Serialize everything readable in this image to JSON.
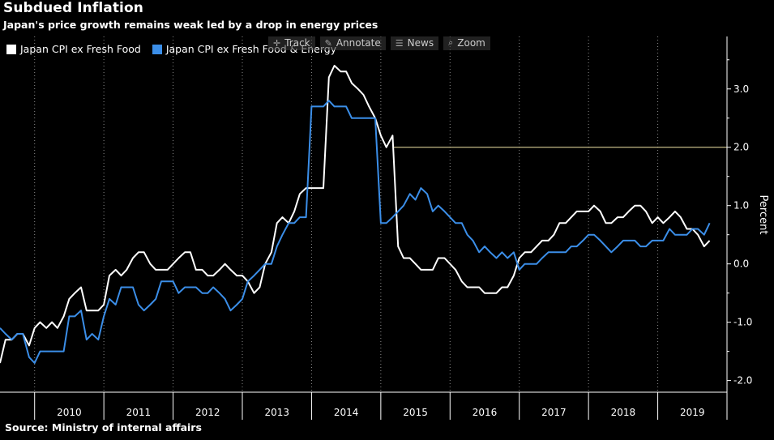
{
  "header": {
    "title": "Subdued Inflation",
    "subtitle": "Japan's price growth remains weak led by a drop in energy prices"
  },
  "source": "Source: Ministry of internal affairs",
  "toolbar": [
    {
      "label": "Track",
      "icon": "crosshair-icon",
      "glyph": "✛"
    },
    {
      "label": "Annotate",
      "icon": "pencil-icon",
      "glyph": "✎"
    },
    {
      "label": "News",
      "icon": "news-icon",
      "glyph": "☰"
    },
    {
      "label": "Zoom",
      "icon": "magnifier-icon",
      "glyph": "⌕"
    }
  ],
  "colors": {
    "background": "#000000",
    "series1": "#ffffff",
    "series2": "#3b8ee8",
    "reference": "#f3e6a8",
    "axis": "#ffffff"
  },
  "chart_data": {
    "type": "line",
    "title": "Subdued Inflation",
    "subtitle": "Japan's price growth remains weak led by a drop in energy prices",
    "xlabel": "",
    "ylabel": "Percent",
    "xlim": [
      2009.5,
      2020.0
    ],
    "ylim": [
      -2.2,
      3.9
    ],
    "x_tick_labels": [
      "2010",
      "2011",
      "2012",
      "2013",
      "2014",
      "2015",
      "2016",
      "2017",
      "2018",
      "2019"
    ],
    "y_ticks": [
      -2.0,
      -1.0,
      0.0,
      1.0,
      2.0,
      3.0
    ],
    "y_tick_labels": [
      "-2.0",
      "-1.0",
      "0.0",
      "1.0",
      "2.0",
      "3.0"
    ],
    "reference_line": {
      "y": 2.0,
      "label": "2.0"
    },
    "legend": "top-left",
    "grid": "vertical only",
    "series": [
      {
        "name": "Japan CPI ex Fresh Food",
        "color": "#ffffff",
        "points": [
          [
            2009.5,
            -1.7
          ],
          [
            2009.58,
            -1.3
          ],
          [
            2009.67,
            -1.3
          ],
          [
            2009.75,
            -1.2
          ],
          [
            2009.83,
            -1.2
          ],
          [
            2009.92,
            -1.4
          ],
          [
            2010.0,
            -1.1
          ],
          [
            2010.08,
            -1.0
          ],
          [
            2010.17,
            -1.1
          ],
          [
            2010.25,
            -1.0
          ],
          [
            2010.33,
            -1.1
          ],
          [
            2010.42,
            -0.9
          ],
          [
            2010.5,
            -0.6
          ],
          [
            2010.58,
            -0.5
          ],
          [
            2010.67,
            -0.4
          ],
          [
            2010.75,
            -0.8
          ],
          [
            2010.83,
            -0.8
          ],
          [
            2010.92,
            -0.8
          ],
          [
            2011.0,
            -0.7
          ],
          [
            2011.08,
            -0.2
          ],
          [
            2011.17,
            -0.1
          ],
          [
            2011.25,
            -0.2
          ],
          [
            2011.33,
            -0.1
          ],
          [
            2011.42,
            0.1
          ],
          [
            2011.5,
            0.2
          ],
          [
            2011.58,
            0.2
          ],
          [
            2011.67,
            0.0
          ],
          [
            2011.75,
            -0.1
          ],
          [
            2011.83,
            -0.1
          ],
          [
            2011.92,
            -0.1
          ],
          [
            2012.0,
            0.0
          ],
          [
            2012.08,
            0.1
          ],
          [
            2012.17,
            0.2
          ],
          [
            2012.25,
            0.2
          ],
          [
            2012.33,
            -0.1
          ],
          [
            2012.42,
            -0.1
          ],
          [
            2012.5,
            -0.2
          ],
          [
            2012.58,
            -0.2
          ],
          [
            2012.67,
            -0.1
          ],
          [
            2012.75,
            0.0
          ],
          [
            2012.83,
            -0.1
          ],
          [
            2012.92,
            -0.2
          ],
          [
            2013.0,
            -0.2
          ],
          [
            2013.08,
            -0.3
          ],
          [
            2013.17,
            -0.5
          ],
          [
            2013.25,
            -0.4
          ],
          [
            2013.33,
            0.0
          ],
          [
            2013.42,
            0.2
          ],
          [
            2013.5,
            0.7
          ],
          [
            2013.58,
            0.8
          ],
          [
            2013.67,
            0.7
          ],
          [
            2013.75,
            0.9
          ],
          [
            2013.83,
            1.2
          ],
          [
            2013.92,
            1.3
          ],
          [
            2014.0,
            1.3
          ],
          [
            2014.08,
            1.3
          ],
          [
            2014.17,
            1.3
          ],
          [
            2014.25,
            3.2
          ],
          [
            2014.33,
            3.4
          ],
          [
            2014.42,
            3.3
          ],
          [
            2014.5,
            3.3
          ],
          [
            2014.58,
            3.1
          ],
          [
            2014.67,
            3.0
          ],
          [
            2014.75,
            2.9
          ],
          [
            2014.83,
            2.7
          ],
          [
            2014.92,
            2.5
          ],
          [
            2015.0,
            2.2
          ],
          [
            2015.08,
            2.0
          ],
          [
            2015.17,
            2.2
          ],
          [
            2015.25,
            0.3
          ],
          [
            2015.33,
            0.1
          ],
          [
            2015.42,
            0.1
          ],
          [
            2015.5,
            0.0
          ],
          [
            2015.58,
            -0.1
          ],
          [
            2015.67,
            -0.1
          ],
          [
            2015.75,
            -0.1
          ],
          [
            2015.83,
            0.1
          ],
          [
            2015.92,
            0.1
          ],
          [
            2016.0,
            0.0
          ],
          [
            2016.08,
            -0.1
          ],
          [
            2016.17,
            -0.3
          ],
          [
            2016.25,
            -0.4
          ],
          [
            2016.33,
            -0.4
          ],
          [
            2016.42,
            -0.4
          ],
          [
            2016.5,
            -0.5
          ],
          [
            2016.58,
            -0.5
          ],
          [
            2016.67,
            -0.5
          ],
          [
            2016.75,
            -0.4
          ],
          [
            2016.83,
            -0.4
          ],
          [
            2016.92,
            -0.2
          ],
          [
            2017.0,
            0.1
          ],
          [
            2017.08,
            0.2
          ],
          [
            2017.17,
            0.2
          ],
          [
            2017.25,
            0.3
          ],
          [
            2017.33,
            0.4
          ],
          [
            2017.42,
            0.4
          ],
          [
            2017.5,
            0.5
          ],
          [
            2017.58,
            0.7
          ],
          [
            2017.67,
            0.7
          ],
          [
            2017.75,
            0.8
          ],
          [
            2017.83,
            0.9
          ],
          [
            2017.92,
            0.9
          ],
          [
            2018.0,
            0.9
          ],
          [
            2018.08,
            1.0
          ],
          [
            2018.17,
            0.9
          ],
          [
            2018.25,
            0.7
          ],
          [
            2018.33,
            0.7
          ],
          [
            2018.42,
            0.8
          ],
          [
            2018.5,
            0.8
          ],
          [
            2018.58,
            0.9
          ],
          [
            2018.67,
            1.0
          ],
          [
            2018.75,
            1.0
          ],
          [
            2018.83,
            0.9
          ],
          [
            2018.92,
            0.7
          ],
          [
            2019.0,
            0.8
          ],
          [
            2019.08,
            0.7
          ],
          [
            2019.17,
            0.8
          ],
          [
            2019.25,
            0.9
          ],
          [
            2019.33,
            0.8
          ],
          [
            2019.42,
            0.6
          ],
          [
            2019.5,
            0.6
          ],
          [
            2019.58,
            0.5
          ],
          [
            2019.67,
            0.3
          ],
          [
            2019.75,
            0.4
          ]
        ]
      },
      {
        "name": "Japan CPI ex Fresh Food & Energy",
        "color": "#3b8ee8",
        "points": [
          [
            2009.5,
            -1.1
          ],
          [
            2009.58,
            -1.2
          ],
          [
            2009.67,
            -1.3
          ],
          [
            2009.75,
            -1.2
          ],
          [
            2009.83,
            -1.2
          ],
          [
            2009.92,
            -1.6
          ],
          [
            2010.0,
            -1.7
          ],
          [
            2010.08,
            -1.5
          ],
          [
            2010.17,
            -1.5
          ],
          [
            2010.25,
            -1.5
          ],
          [
            2010.33,
            -1.5
          ],
          [
            2010.42,
            -1.5
          ],
          [
            2010.5,
            -0.9
          ],
          [
            2010.58,
            -0.9
          ],
          [
            2010.67,
            -0.8
          ],
          [
            2010.75,
            -1.3
          ],
          [
            2010.83,
            -1.2
          ],
          [
            2010.92,
            -1.3
          ],
          [
            2011.0,
            -0.9
          ],
          [
            2011.08,
            -0.6
          ],
          [
            2011.17,
            -0.7
          ],
          [
            2011.25,
            -0.4
          ],
          [
            2011.33,
            -0.4
          ],
          [
            2011.42,
            -0.4
          ],
          [
            2011.5,
            -0.7
          ],
          [
            2011.58,
            -0.8
          ],
          [
            2011.67,
            -0.7
          ],
          [
            2011.75,
            -0.6
          ],
          [
            2011.83,
            -0.3
          ],
          [
            2011.92,
            -0.3
          ],
          [
            2012.0,
            -0.3
          ],
          [
            2012.08,
            -0.5
          ],
          [
            2012.17,
            -0.4
          ],
          [
            2012.25,
            -0.4
          ],
          [
            2012.33,
            -0.4
          ],
          [
            2012.42,
            -0.5
          ],
          [
            2012.5,
            -0.5
          ],
          [
            2012.58,
            -0.4
          ],
          [
            2012.67,
            -0.5
          ],
          [
            2012.75,
            -0.6
          ],
          [
            2012.83,
            -0.8
          ],
          [
            2012.92,
            -0.7
          ],
          [
            2013.0,
            -0.6
          ],
          [
            2013.08,
            -0.3
          ],
          [
            2013.17,
            -0.2
          ],
          [
            2013.25,
            -0.1
          ],
          [
            2013.33,
            0.0
          ],
          [
            2013.42,
            0.0
          ],
          [
            2013.5,
            0.3
          ],
          [
            2013.58,
            0.5
          ],
          [
            2013.67,
            0.7
          ],
          [
            2013.75,
            0.7
          ],
          [
            2013.83,
            0.8
          ],
          [
            2013.92,
            0.8
          ],
          [
            2014.0,
            2.7
          ],
          [
            2014.08,
            2.7
          ],
          [
            2014.17,
            2.7
          ],
          [
            2014.25,
            2.8
          ],
          [
            2014.33,
            2.7
          ],
          [
            2014.42,
            2.7
          ],
          [
            2014.5,
            2.7
          ],
          [
            2014.58,
            2.5
          ],
          [
            2014.67,
            2.5
          ],
          [
            2014.75,
            2.5
          ],
          [
            2014.83,
            2.5
          ],
          [
            2014.92,
            2.5
          ],
          [
            2015.0,
            0.7
          ],
          [
            2015.08,
            0.7
          ],
          [
            2015.17,
            0.8
          ],
          [
            2015.25,
            0.9
          ],
          [
            2015.33,
            1.0
          ],
          [
            2015.42,
            1.2
          ],
          [
            2015.5,
            1.1
          ],
          [
            2015.58,
            1.3
          ],
          [
            2015.67,
            1.2
          ],
          [
            2015.75,
            0.9
          ],
          [
            2015.83,
            1.0
          ],
          [
            2015.92,
            0.9
          ],
          [
            2016.0,
            0.8
          ],
          [
            2016.08,
            0.7
          ],
          [
            2016.17,
            0.7
          ],
          [
            2016.25,
            0.5
          ],
          [
            2016.33,
            0.4
          ],
          [
            2016.42,
            0.2
          ],
          [
            2016.5,
            0.3
          ],
          [
            2016.58,
            0.2
          ],
          [
            2016.67,
            0.1
          ],
          [
            2016.75,
            0.2
          ],
          [
            2016.83,
            0.1
          ],
          [
            2016.92,
            0.2
          ],
          [
            2017.0,
            -0.1
          ],
          [
            2017.08,
            0.0
          ],
          [
            2017.17,
            0.0
          ],
          [
            2017.25,
            0.0
          ],
          [
            2017.33,
            0.1
          ],
          [
            2017.42,
            0.2
          ],
          [
            2017.5,
            0.2
          ],
          [
            2017.58,
            0.2
          ],
          [
            2017.67,
            0.2
          ],
          [
            2017.75,
            0.3
          ],
          [
            2017.83,
            0.3
          ],
          [
            2017.92,
            0.4
          ],
          [
            2018.0,
            0.5
          ],
          [
            2018.08,
            0.5
          ],
          [
            2018.17,
            0.4
          ],
          [
            2018.25,
            0.3
          ],
          [
            2018.33,
            0.2
          ],
          [
            2018.42,
            0.3
          ],
          [
            2018.5,
            0.4
          ],
          [
            2018.58,
            0.4
          ],
          [
            2018.67,
            0.4
          ],
          [
            2018.75,
            0.3
          ],
          [
            2018.83,
            0.3
          ],
          [
            2018.92,
            0.4
          ],
          [
            2019.0,
            0.4
          ],
          [
            2019.08,
            0.4
          ],
          [
            2019.17,
            0.6
          ],
          [
            2019.25,
            0.5
          ],
          [
            2019.33,
            0.5
          ],
          [
            2019.42,
            0.5
          ],
          [
            2019.5,
            0.6
          ],
          [
            2019.58,
            0.6
          ],
          [
            2019.67,
            0.5
          ],
          [
            2019.75,
            0.7
          ]
        ]
      }
    ]
  }
}
